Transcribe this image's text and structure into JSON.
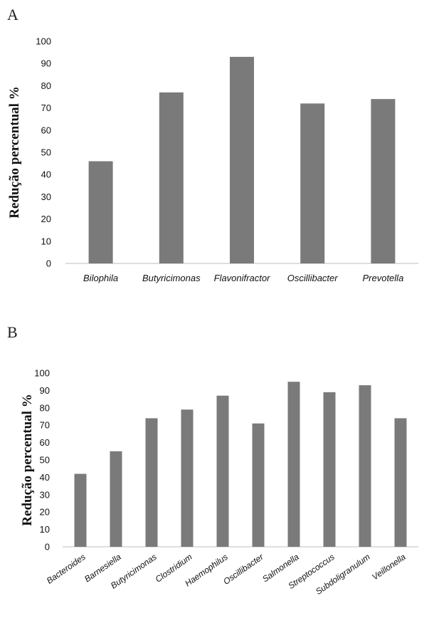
{
  "chart_data": [
    {
      "panel": "A",
      "type": "bar",
      "ylabel": "Redução percentual %",
      "ylim": [
        0,
        100
      ],
      "yticks": [
        0,
        10,
        20,
        30,
        40,
        50,
        60,
        70,
        80,
        90,
        100
      ],
      "categories": [
        "Bilophila",
        "Butyricimonas",
        "Flavonifractor",
        "Oscillibacter",
        "Prevotella"
      ],
      "values": [
        46,
        77,
        93,
        72,
        74
      ],
      "bar_color": "#7a7a7a",
      "grid": false
    },
    {
      "panel": "B",
      "type": "bar",
      "ylabel": "Redução percentual %",
      "ylim": [
        0,
        100
      ],
      "yticks": [
        0,
        10,
        20,
        30,
        40,
        50,
        60,
        70,
        80,
        90,
        100
      ],
      "categories": [
        "Bacteroides",
        "Barnesiella",
        "Butyricimonas",
        "Clostridium",
        "Haemophilus",
        "Oscillibacter",
        "Salmonella",
        "Streptococcus",
        "Subdoligranulum",
        "Veillonella"
      ],
      "values": [
        42,
        55,
        74,
        79,
        87,
        71,
        95,
        89,
        93,
        74
      ],
      "bar_color": "#7a7a7a",
      "grid": false
    }
  ]
}
